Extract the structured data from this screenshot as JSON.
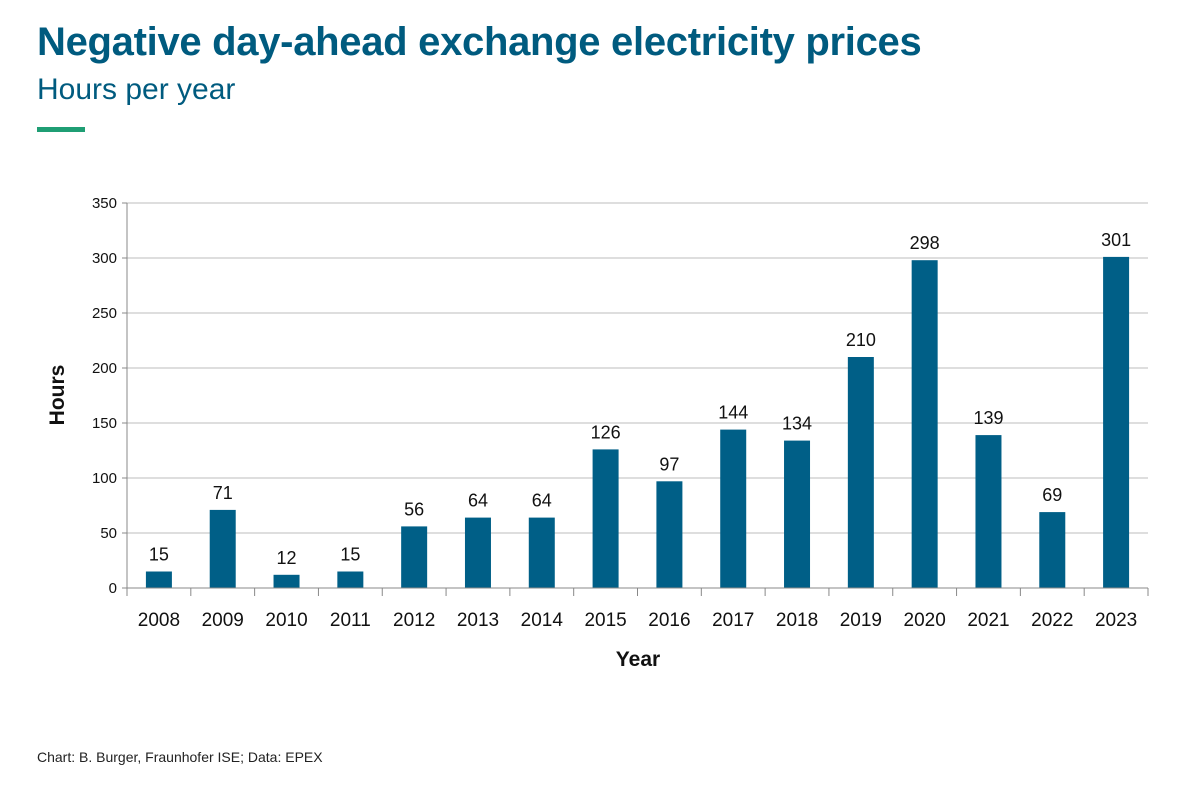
{
  "header": {
    "title": "Negative day-ahead exchange electricity prices",
    "subtitle": "Hours per year"
  },
  "footer": {
    "source": "Chart: B. Burger, Fraunhofer ISE; Data: EPEX"
  },
  "colors": {
    "title": "#005b7f",
    "bar": "#005f87",
    "accent": "#1f9e74",
    "grid": "#bdbdbd"
  },
  "chart_data": {
    "type": "bar",
    "xlabel": "Year",
    "ylabel": "Hours",
    "ylim": [
      0,
      350
    ],
    "yticks": [
      0,
      50,
      100,
      150,
      200,
      250,
      300,
      350
    ],
    "grid": true,
    "categories": [
      "2008",
      "2009",
      "2010",
      "2011",
      "2012",
      "2013",
      "2014",
      "2015",
      "2016",
      "2017",
      "2018",
      "2019",
      "2020",
      "2021",
      "2022",
      "2023"
    ],
    "values": [
      15,
      71,
      12,
      15,
      56,
      64,
      64,
      126,
      97,
      144,
      134,
      210,
      298,
      139,
      69,
      301
    ]
  }
}
